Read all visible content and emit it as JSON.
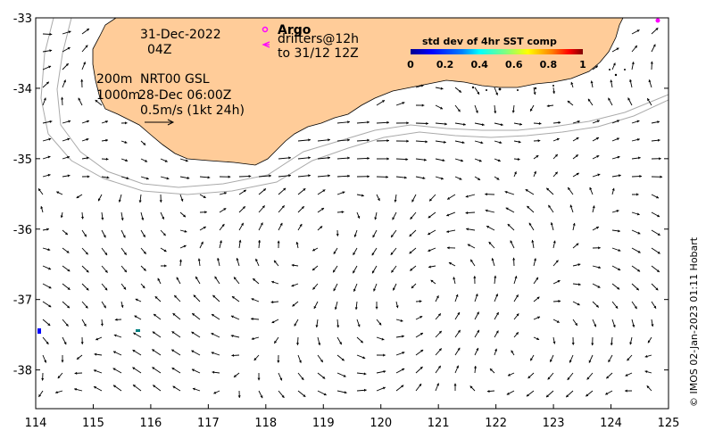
{
  "map": {
    "lon_ticks": [
      "114",
      "115",
      "116",
      "117",
      "118",
      "119",
      "120",
      "121",
      "122",
      "123",
      "124",
      "125"
    ],
    "lat_ticks": [
      "-33",
      "-34",
      "-35",
      "-36",
      "-37",
      "-38"
    ],
    "lon_range": [
      114,
      125
    ],
    "lat_range": [
      -38.55,
      -33
    ]
  },
  "annotations": {
    "date": "31-Dec-2022",
    "time": "04Z",
    "argo_title": "Argo",
    "drifters_line1": "drifters@12h",
    "drifters_line2": "to 31/12 12Z",
    "depth_200": "200m",
    "depth_1000": "1000m",
    "product": "NRT00 GSL",
    "product_time": "28-Dec 06:00Z",
    "scale_label": "0.5m/s (1kt 24h)"
  },
  "colorbar": {
    "title": "std dev of 4hr SST comp",
    "ticks": [
      "0",
      "0.2",
      "0.4",
      "0.6",
      "0.8",
      "1"
    ],
    "colors": [
      "#00008f",
      "#0000ff",
      "#0080ff",
      "#00ffff",
      "#80ff80",
      "#ffff00",
      "#ff8000",
      "#ff0000",
      "#800000"
    ]
  },
  "colors": {
    "land": "#ffcc99",
    "argo": "#ff00ff",
    "contour": "#aaaaaa"
  },
  "credit": "© IMOS 02-Jan-2023 01:11 Hobart"
}
